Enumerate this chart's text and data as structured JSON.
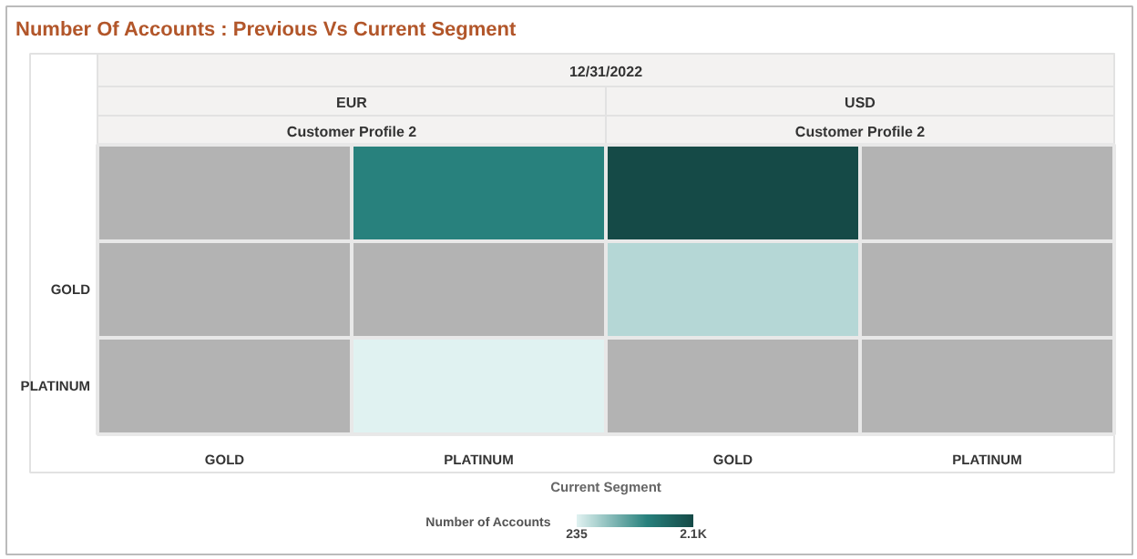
{
  "chart_data": {
    "type": "heatmap",
    "title": "Number Of Accounts : Previous Vs Current Segment",
    "categories": [
      "GOLD",
      "PLATINUM",
      "GOLD",
      "PLATINUM"
    ],
    "y_categories": [
      null,
      "GOLD",
      "PLATINUM"
    ],
    "cells": [
      [
        null,
        1350,
        2100,
        null
      ],
      [
        null,
        null,
        500,
        null
      ],
      [
        null,
        235,
        null,
        null
      ]
    ],
    "annotations": [
      "12/31/2022",
      "EUR",
      "USD",
      "Customer Profile 2",
      "Customer Profile 2"
    ],
    "xlabel": "Current Segment",
    "clabel": "Number of Accounts",
    "clim": [
      235,
      2100
    ],
    "cticks": [
      {
        "value": 235,
        "label": "235"
      },
      {
        "value": 2100,
        "label": "2.1K"
      }
    ]
  }
}
